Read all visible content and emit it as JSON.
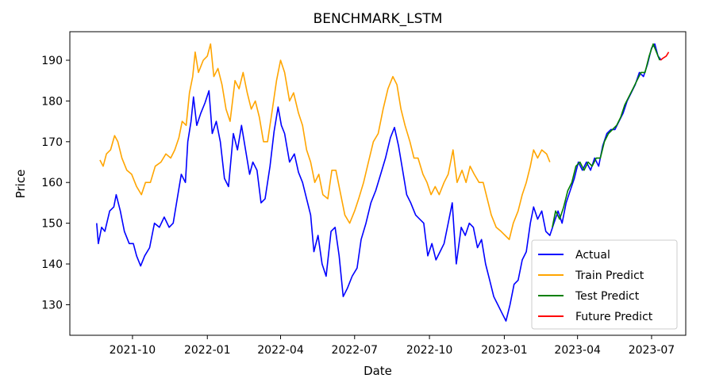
{
  "chart_data": {
    "type": "line",
    "title": "BENCHMARK_LSTM",
    "xlabel": "Date",
    "ylabel": "Price",
    "x_axis": "date",
    "xlim": [
      "2021-07-16",
      "2023-08-12"
    ],
    "ylim": [
      122.5,
      197
    ],
    "x_ticks": [
      "2021-10-01",
      "2022-01-01",
      "2022-04-01",
      "2022-07-01",
      "2022-10-01",
      "2023-01-01",
      "2023-04-01",
      "2023-07-01"
    ],
    "x_tick_labels": [
      "2021-10",
      "2022-01",
      "2022-04",
      "2022-07",
      "2022-10",
      "2023-01",
      "2023-04",
      "2023-07"
    ],
    "y_ticks": [
      130,
      140,
      150,
      160,
      170,
      180,
      190
    ],
    "grid": false,
    "legend_position": "lower-right",
    "series": [
      {
        "name": "Actual",
        "color": "#0000ff",
        "points": [
          [
            "2021-08-18",
            150
          ],
          [
            "2021-08-20",
            145
          ],
          [
            "2021-08-24",
            149
          ],
          [
            "2021-08-28",
            148
          ],
          [
            "2021-09-03",
            153
          ],
          [
            "2021-09-08",
            154
          ],
          [
            "2021-09-11",
            157
          ],
          [
            "2021-09-16",
            153
          ],
          [
            "2021-09-21",
            148
          ],
          [
            "2021-09-27",
            145
          ],
          [
            "2021-10-02",
            145
          ],
          [
            "2021-10-06",
            142
          ],
          [
            "2021-10-11",
            139.5
          ],
          [
            "2021-10-16",
            142
          ],
          [
            "2021-10-22",
            144
          ],
          [
            "2021-10-28",
            150
          ],
          [
            "2021-11-03",
            149
          ],
          [
            "2021-11-09",
            151.5
          ],
          [
            "2021-11-15",
            149
          ],
          [
            "2021-11-20",
            150
          ],
          [
            "2021-11-25",
            156
          ],
          [
            "2021-11-30",
            162
          ],
          [
            "2021-12-05",
            160
          ],
          [
            "2021-12-08",
            170
          ],
          [
            "2021-12-12",
            175
          ],
          [
            "2021-12-15",
            181
          ],
          [
            "2021-12-19",
            174
          ],
          [
            "2021-12-24",
            177
          ],
          [
            "2021-12-29",
            179.5
          ],
          [
            "2022-01-03",
            182.5
          ],
          [
            "2022-01-07",
            172
          ],
          [
            "2022-01-12",
            175
          ],
          [
            "2022-01-17",
            170
          ],
          [
            "2022-01-22",
            161
          ],
          [
            "2022-01-27",
            159
          ],
          [
            "2022-02-02",
            172
          ],
          [
            "2022-02-07",
            168
          ],
          [
            "2022-02-12",
            174
          ],
          [
            "2022-02-17",
            168
          ],
          [
            "2022-02-22",
            162
          ],
          [
            "2022-02-26",
            165
          ],
          [
            "2022-03-03",
            163
          ],
          [
            "2022-03-08",
            155
          ],
          [
            "2022-03-13",
            156
          ],
          [
            "2022-03-19",
            164
          ],
          [
            "2022-03-24",
            172.5
          ],
          [
            "2022-03-29",
            178.5
          ],
          [
            "2022-04-02",
            174
          ],
          [
            "2022-04-06",
            172
          ],
          [
            "2022-04-12",
            165
          ],
          [
            "2022-04-18",
            167
          ],
          [
            "2022-04-23",
            162.5
          ],
          [
            "2022-04-28",
            160
          ],
          [
            "2022-05-03",
            156
          ],
          [
            "2022-05-08",
            152
          ],
          [
            "2022-05-12",
            143
          ],
          [
            "2022-05-17",
            147
          ],
          [
            "2022-05-22",
            140
          ],
          [
            "2022-05-27",
            137
          ],
          [
            "2022-06-02",
            148
          ],
          [
            "2022-06-07",
            149
          ],
          [
            "2022-06-12",
            142
          ],
          [
            "2022-06-17",
            132
          ],
          [
            "2022-06-22",
            134
          ],
          [
            "2022-06-28",
            137
          ],
          [
            "2022-07-04",
            139
          ],
          [
            "2022-07-09",
            146
          ],
          [
            "2022-07-15",
            150
          ],
          [
            "2022-07-21",
            155
          ],
          [
            "2022-07-27",
            158
          ],
          [
            "2022-08-02",
            162
          ],
          [
            "2022-08-08",
            166
          ],
          [
            "2022-08-14",
            171
          ],
          [
            "2022-08-19",
            173.5
          ],
          [
            "2022-08-24",
            169
          ],
          [
            "2022-08-29",
            163
          ],
          [
            "2022-09-03",
            157
          ],
          [
            "2022-09-08",
            155
          ],
          [
            "2022-09-14",
            152
          ],
          [
            "2022-09-19",
            151
          ],
          [
            "2022-09-24",
            150
          ],
          [
            "2022-09-29",
            142
          ],
          [
            "2022-10-04",
            145
          ],
          [
            "2022-10-09",
            141
          ],
          [
            "2022-10-14",
            143
          ],
          [
            "2022-10-19",
            145
          ],
          [
            "2022-10-24",
            150
          ],
          [
            "2022-10-29",
            155
          ],
          [
            "2022-11-03",
            140
          ],
          [
            "2022-11-09",
            149
          ],
          [
            "2022-11-14",
            147
          ],
          [
            "2022-11-19",
            150
          ],
          [
            "2022-11-24",
            149
          ],
          [
            "2022-11-29",
            144
          ],
          [
            "2022-12-04",
            146
          ],
          [
            "2022-12-09",
            140
          ],
          [
            "2022-12-14",
            136
          ],
          [
            "2022-12-19",
            132
          ],
          [
            "2022-12-24",
            130
          ],
          [
            "2022-12-29",
            128
          ],
          [
            "2023-01-03",
            126
          ],
          [
            "2023-01-08",
            130
          ],
          [
            "2023-01-13",
            135
          ],
          [
            "2023-01-18",
            136
          ],
          [
            "2023-01-23",
            141
          ],
          [
            "2023-01-28",
            143
          ],
          [
            "2023-02-02",
            150
          ],
          [
            "2023-02-06",
            154
          ],
          [
            "2023-02-11",
            151
          ],
          [
            "2023-02-16",
            153
          ],
          [
            "2023-02-21",
            148
          ],
          [
            "2023-02-26",
            147
          ],
          [
            "2023-03-03",
            150
          ],
          [
            "2023-03-08",
            153
          ],
          [
            "2023-03-13",
            150
          ],
          [
            "2023-03-18",
            155
          ],
          [
            "2023-03-23",
            158
          ],
          [
            "2023-03-28",
            161
          ],
          [
            "2023-04-02",
            165
          ],
          [
            "2023-04-07",
            163
          ],
          [
            "2023-04-12",
            165
          ],
          [
            "2023-04-17",
            163
          ],
          [
            "2023-04-22",
            166
          ],
          [
            "2023-04-27",
            164
          ],
          [
            "2023-05-02",
            169
          ],
          [
            "2023-05-07",
            172
          ],
          [
            "2023-05-12",
            173
          ],
          [
            "2023-05-17",
            173
          ],
          [
            "2023-05-22",
            175
          ],
          [
            "2023-05-27",
            177
          ],
          [
            "2023-06-01",
            180
          ],
          [
            "2023-06-06",
            182
          ],
          [
            "2023-06-11",
            184
          ],
          [
            "2023-06-16",
            187
          ],
          [
            "2023-06-21",
            186
          ],
          [
            "2023-06-26",
            189
          ],
          [
            "2023-07-01",
            193
          ],
          [
            "2023-07-05",
            194
          ],
          [
            "2023-07-09",
            191
          ],
          [
            "2023-07-13",
            190
          ]
        ]
      },
      {
        "name": "Train Predict",
        "color": "#ffa500",
        "points": [
          [
            "2021-08-22",
            165.5
          ],
          [
            "2021-08-26",
            164
          ],
          [
            "2021-08-30",
            167
          ],
          [
            "2021-09-04",
            168
          ],
          [
            "2021-09-09",
            171.5
          ],
          [
            "2021-09-13",
            170
          ],
          [
            "2021-09-18",
            166
          ],
          [
            "2021-09-24",
            163
          ],
          [
            "2021-09-30",
            162
          ],
          [
            "2021-10-06",
            159
          ],
          [
            "2021-10-12",
            157
          ],
          [
            "2021-10-17",
            160
          ],
          [
            "2021-10-23",
            160
          ],
          [
            "2021-10-29",
            164
          ],
          [
            "2021-11-05",
            165
          ],
          [
            "2021-11-11",
            167
          ],
          [
            "2021-11-17",
            166
          ],
          [
            "2021-11-22",
            168
          ],
          [
            "2021-11-27",
            171
          ],
          [
            "2021-12-01",
            175
          ],
          [
            "2021-12-06",
            174
          ],
          [
            "2021-12-10",
            182
          ],
          [
            "2021-12-14",
            186
          ],
          [
            "2021-12-17",
            192
          ],
          [
            "2021-12-21",
            187
          ],
          [
            "2021-12-27",
            190
          ],
          [
            "2022-01-01",
            191
          ],
          [
            "2022-01-05",
            194
          ],
          [
            "2022-01-09",
            186
          ],
          [
            "2022-01-14",
            188
          ],
          [
            "2022-01-19",
            184
          ],
          [
            "2022-01-24",
            178
          ],
          [
            "2022-01-29",
            175
          ],
          [
            "2022-02-04",
            185
          ],
          [
            "2022-02-09",
            183
          ],
          [
            "2022-02-14",
            187
          ],
          [
            "2022-02-19",
            182
          ],
          [
            "2022-02-24",
            178
          ],
          [
            "2022-03-01",
            180
          ],
          [
            "2022-03-06",
            176
          ],
          [
            "2022-03-11",
            170
          ],
          [
            "2022-03-16",
            170
          ],
          [
            "2022-03-22",
            178
          ],
          [
            "2022-03-27",
            185
          ],
          [
            "2022-04-01",
            190
          ],
          [
            "2022-04-06",
            187
          ],
          [
            "2022-04-12",
            180
          ],
          [
            "2022-04-17",
            182
          ],
          [
            "2022-04-23",
            177
          ],
          [
            "2022-04-28",
            174
          ],
          [
            "2022-05-03",
            168
          ],
          [
            "2022-05-08",
            165
          ],
          [
            "2022-05-13",
            160
          ],
          [
            "2022-05-18",
            162
          ],
          [
            "2022-05-23",
            157
          ],
          [
            "2022-05-29",
            156
          ],
          [
            "2022-06-03",
            163
          ],
          [
            "2022-06-08",
            163
          ],
          [
            "2022-06-13",
            158
          ],
          [
            "2022-06-19",
            152
          ],
          [
            "2022-06-25",
            150
          ],
          [
            "2022-07-01",
            153
          ],
          [
            "2022-07-06",
            156
          ],
          [
            "2022-07-12",
            160
          ],
          [
            "2022-07-18",
            165
          ],
          [
            "2022-07-24",
            170
          ],
          [
            "2022-07-30",
            172
          ],
          [
            "2022-08-05",
            178
          ],
          [
            "2022-08-11",
            183
          ],
          [
            "2022-08-17",
            186
          ],
          [
            "2022-08-22",
            184
          ],
          [
            "2022-08-27",
            178
          ],
          [
            "2022-09-01",
            174
          ],
          [
            "2022-09-07",
            170
          ],
          [
            "2022-09-12",
            166
          ],
          [
            "2022-09-17",
            166
          ],
          [
            "2022-09-23",
            162
          ],
          [
            "2022-09-28",
            160
          ],
          [
            "2022-10-03",
            157
          ],
          [
            "2022-10-08",
            159
          ],
          [
            "2022-10-13",
            157
          ],
          [
            "2022-10-19",
            160
          ],
          [
            "2022-10-24",
            162
          ],
          [
            "2022-10-30",
            168
          ],
          [
            "2022-11-04",
            160
          ],
          [
            "2022-11-10",
            163
          ],
          [
            "2022-11-15",
            160
          ],
          [
            "2022-11-20",
            164
          ],
          [
            "2022-11-25",
            162
          ],
          [
            "2022-12-01",
            160
          ],
          [
            "2022-12-06",
            160
          ],
          [
            "2022-12-11",
            156
          ],
          [
            "2022-12-16",
            152
          ],
          [
            "2022-12-22",
            149
          ],
          [
            "2022-12-28",
            148
          ],
          [
            "2023-01-02",
            147
          ],
          [
            "2023-01-07",
            146
          ],
          [
            "2023-01-12",
            150
          ],
          [
            "2023-01-18",
            153
          ],
          [
            "2023-01-23",
            157
          ],
          [
            "2023-01-28",
            160
          ],
          [
            "2023-02-02",
            164
          ],
          [
            "2023-02-06",
            168
          ],
          [
            "2023-02-11",
            166
          ],
          [
            "2023-02-16",
            168
          ],
          [
            "2023-02-22",
            167
          ],
          [
            "2023-02-26",
            165
          ]
        ]
      },
      {
        "name": "Test Predict",
        "color": "#008000",
        "points": [
          [
            "2023-03-01",
            149
          ],
          [
            "2023-03-05",
            153
          ],
          [
            "2023-03-10",
            151
          ],
          [
            "2023-03-15",
            154
          ],
          [
            "2023-03-20",
            158
          ],
          [
            "2023-03-25",
            160
          ],
          [
            "2023-03-30",
            164
          ],
          [
            "2023-04-04",
            165
          ],
          [
            "2023-04-09",
            163
          ],
          [
            "2023-04-14",
            165
          ],
          [
            "2023-04-19",
            164
          ],
          [
            "2023-04-24",
            166
          ],
          [
            "2023-04-29",
            166
          ],
          [
            "2023-05-04",
            170
          ],
          [
            "2023-05-09",
            172
          ],
          [
            "2023-05-14",
            173
          ],
          [
            "2023-05-19",
            174
          ],
          [
            "2023-05-24",
            176
          ],
          [
            "2023-05-29",
            179
          ],
          [
            "2023-06-03",
            181
          ],
          [
            "2023-06-08",
            183
          ],
          [
            "2023-06-13",
            185
          ],
          [
            "2023-06-18",
            187
          ],
          [
            "2023-06-23",
            187
          ],
          [
            "2023-06-28",
            191
          ],
          [
            "2023-07-03",
            194
          ],
          [
            "2023-07-07",
            192
          ],
          [
            "2023-07-11",
            190
          ]
        ]
      },
      {
        "name": "Future Predict",
        "color": "#ff0000",
        "points": [
          [
            "2023-07-12",
            190
          ],
          [
            "2023-07-15",
            190.5
          ],
          [
            "2023-07-19",
            191
          ],
          [
            "2023-07-22",
            192
          ]
        ]
      }
    ]
  }
}
